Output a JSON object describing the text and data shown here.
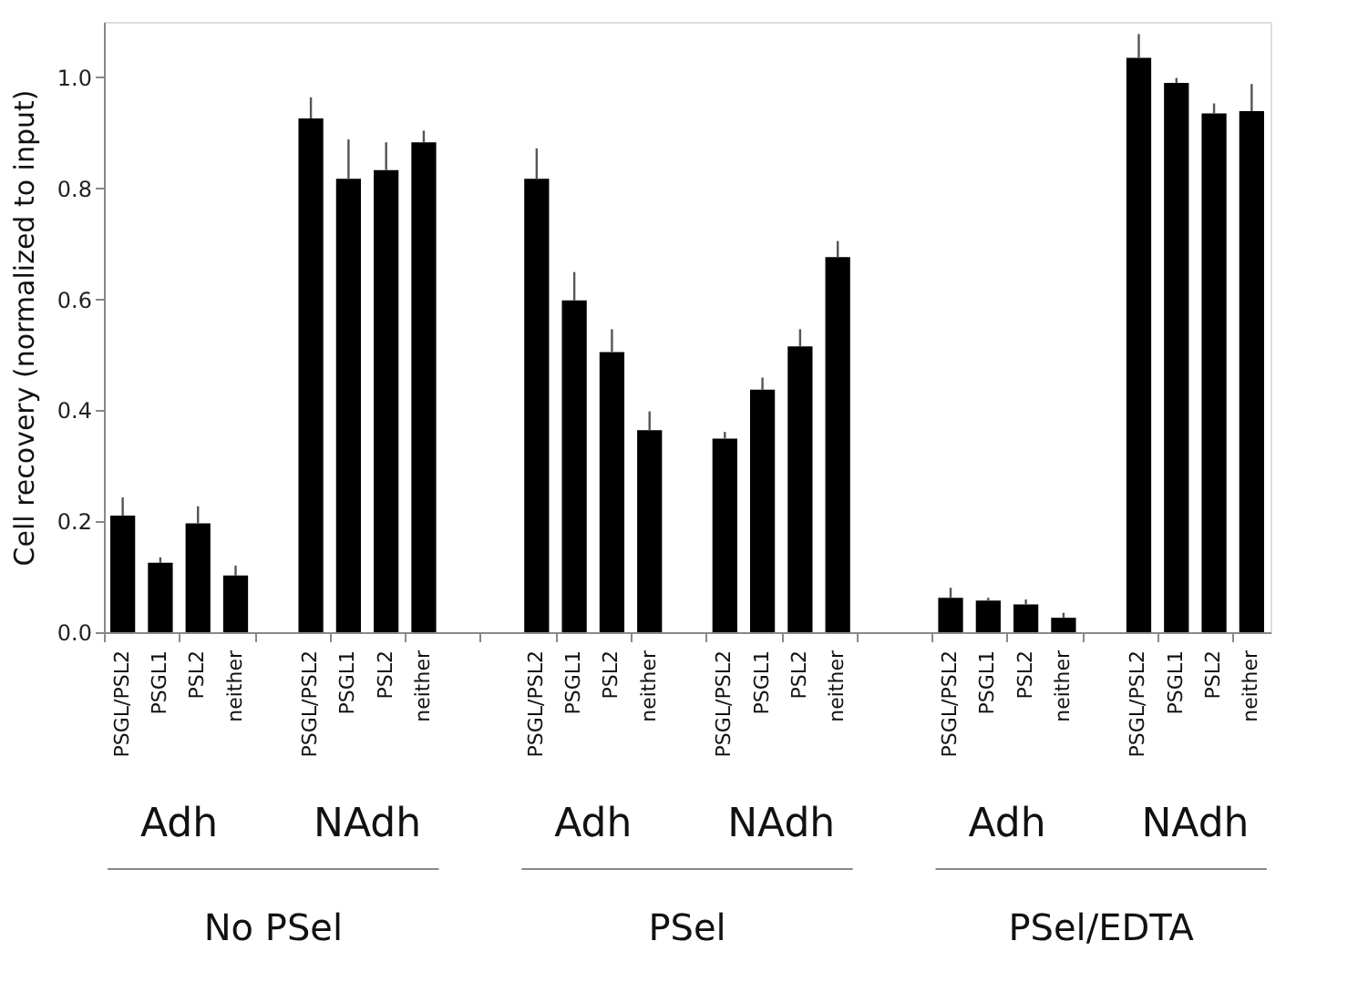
{
  "chart_data": {
    "type": "bar",
    "ylabel": "Cell recovery (normalized to input)",
    "categories": [
      "PSGL/PSL2",
      "PSGL1",
      "PSL2",
      "neither",
      null,
      "PSGL/PSL2",
      "PSGL1",
      "PSL2",
      "neither",
      null,
      null,
      "PSGL/PSL2",
      "PSGL1",
      "PSL2",
      "neither",
      null,
      "PSGL/PSL2",
      "PSGL1",
      "PSL2",
      "neither",
      null,
      null,
      "PSGL/PSL2",
      "PSGL1",
      "PSL2",
      "neither",
      null,
      "PSGL/PSL2",
      "PSGL1",
      "PSL2",
      "neither"
    ],
    "values": [
      0.21,
      0.125,
      0.196,
      0.102,
      null,
      0.926,
      0.817,
      0.833,
      0.883,
      null,
      null,
      0.817,
      0.598,
      0.505,
      0.364,
      null,
      0.349,
      0.437,
      0.515,
      0.676,
      null,
      null,
      0.062,
      0.057,
      0.05,
      0.026,
      null,
      1.035,
      0.99,
      0.935,
      0.939
    ],
    "errors": [
      [
        0.21,
        0.243
      ],
      [
        0.125,
        0.135
      ],
      [
        0.196,
        0.227
      ],
      [
        0.102,
        0.12
      ],
      null,
      [
        0.926,
        0.964
      ],
      [
        0.817,
        0.888
      ],
      [
        0.833,
        0.883
      ],
      [
        0.883,
        0.904
      ],
      null,
      null,
      [
        0.817,
        0.872
      ],
      [
        0.598,
        0.649
      ],
      [
        0.505,
        0.546
      ],
      [
        0.364,
        0.398
      ],
      null,
      [
        0.349,
        0.361
      ],
      [
        0.437,
        0.459
      ],
      [
        0.515,
        0.546
      ],
      [
        0.676,
        0.705
      ],
      null,
      null,
      [
        0.062,
        0.08
      ],
      [
        0.057,
        0.062
      ],
      [
        0.05,
        0.059
      ],
      [
        0.026,
        0.035
      ],
      null,
      [
        1.035,
        1.078
      ],
      [
        0.99,
        0.999
      ],
      [
        0.935,
        0.953
      ],
      [
        0.939,
        0.988
      ]
    ],
    "color": "#000000",
    "ylim": [
      0,
      1.1
    ],
    "yticks": [
      {
        "value": 0,
        "label": "0.0"
      },
      {
        "value": 0.2,
        "label": "0.2"
      },
      {
        "value": 0.4,
        "label": "0.4"
      },
      {
        "value": 0.6,
        "label": "0.6"
      },
      {
        "value": 0.8,
        "label": "0.8"
      },
      {
        "value": 1.0,
        "label": "1.0"
      }
    ],
    "grid": false,
    "annotations": [
      "Adh",
      "NAdh",
      "No PSel",
      "Adh",
      "NAdh",
      "PSel",
      "Adh",
      "NAdh",
      "PSel/EDTA"
    ]
  }
}
